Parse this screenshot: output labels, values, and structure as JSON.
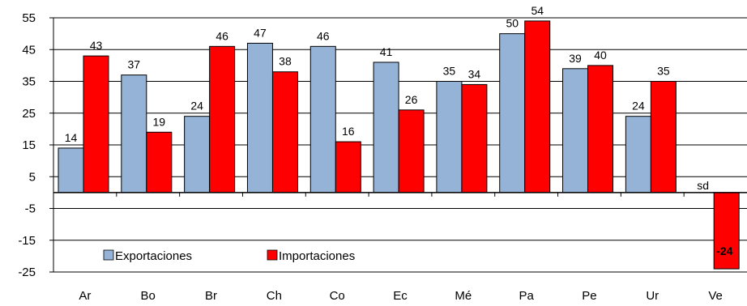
{
  "chart_data": {
    "type": "bar",
    "title": "",
    "xlabel": "",
    "ylabel": "",
    "categories": [
      "Ar",
      "Bo",
      "Br",
      "Ch",
      "Co",
      "Ec",
      "Mé",
      "Pa",
      "Pe",
      "Ur",
      "Ve"
    ],
    "series": [
      {
        "name": "Exportaciones",
        "color": "#95b3d7",
        "values": [
          14,
          37,
          24,
          47,
          46,
          41,
          35,
          50,
          39,
          24,
          null
        ],
        "labels": [
          "14",
          "37",
          "24",
          "47",
          "46",
          "41",
          "35",
          "50",
          "39",
          "24",
          "sd"
        ]
      },
      {
        "name": "Importaciones",
        "color": "#ff0000",
        "values": [
          43,
          19,
          46,
          38,
          16,
          26,
          34,
          54,
          40,
          35,
          -24
        ],
        "labels": [
          "43",
          "19",
          "46",
          "38",
          "16",
          "26",
          "34",
          "54",
          "40",
          "35",
          "-24"
        ]
      }
    ],
    "ylim": [
      -25,
      55
    ],
    "yticks": [
      55,
      45,
      35,
      25,
      15,
      5,
      -5,
      -15,
      -25
    ],
    "grid": true,
    "legend_position": "bottom-left"
  }
}
